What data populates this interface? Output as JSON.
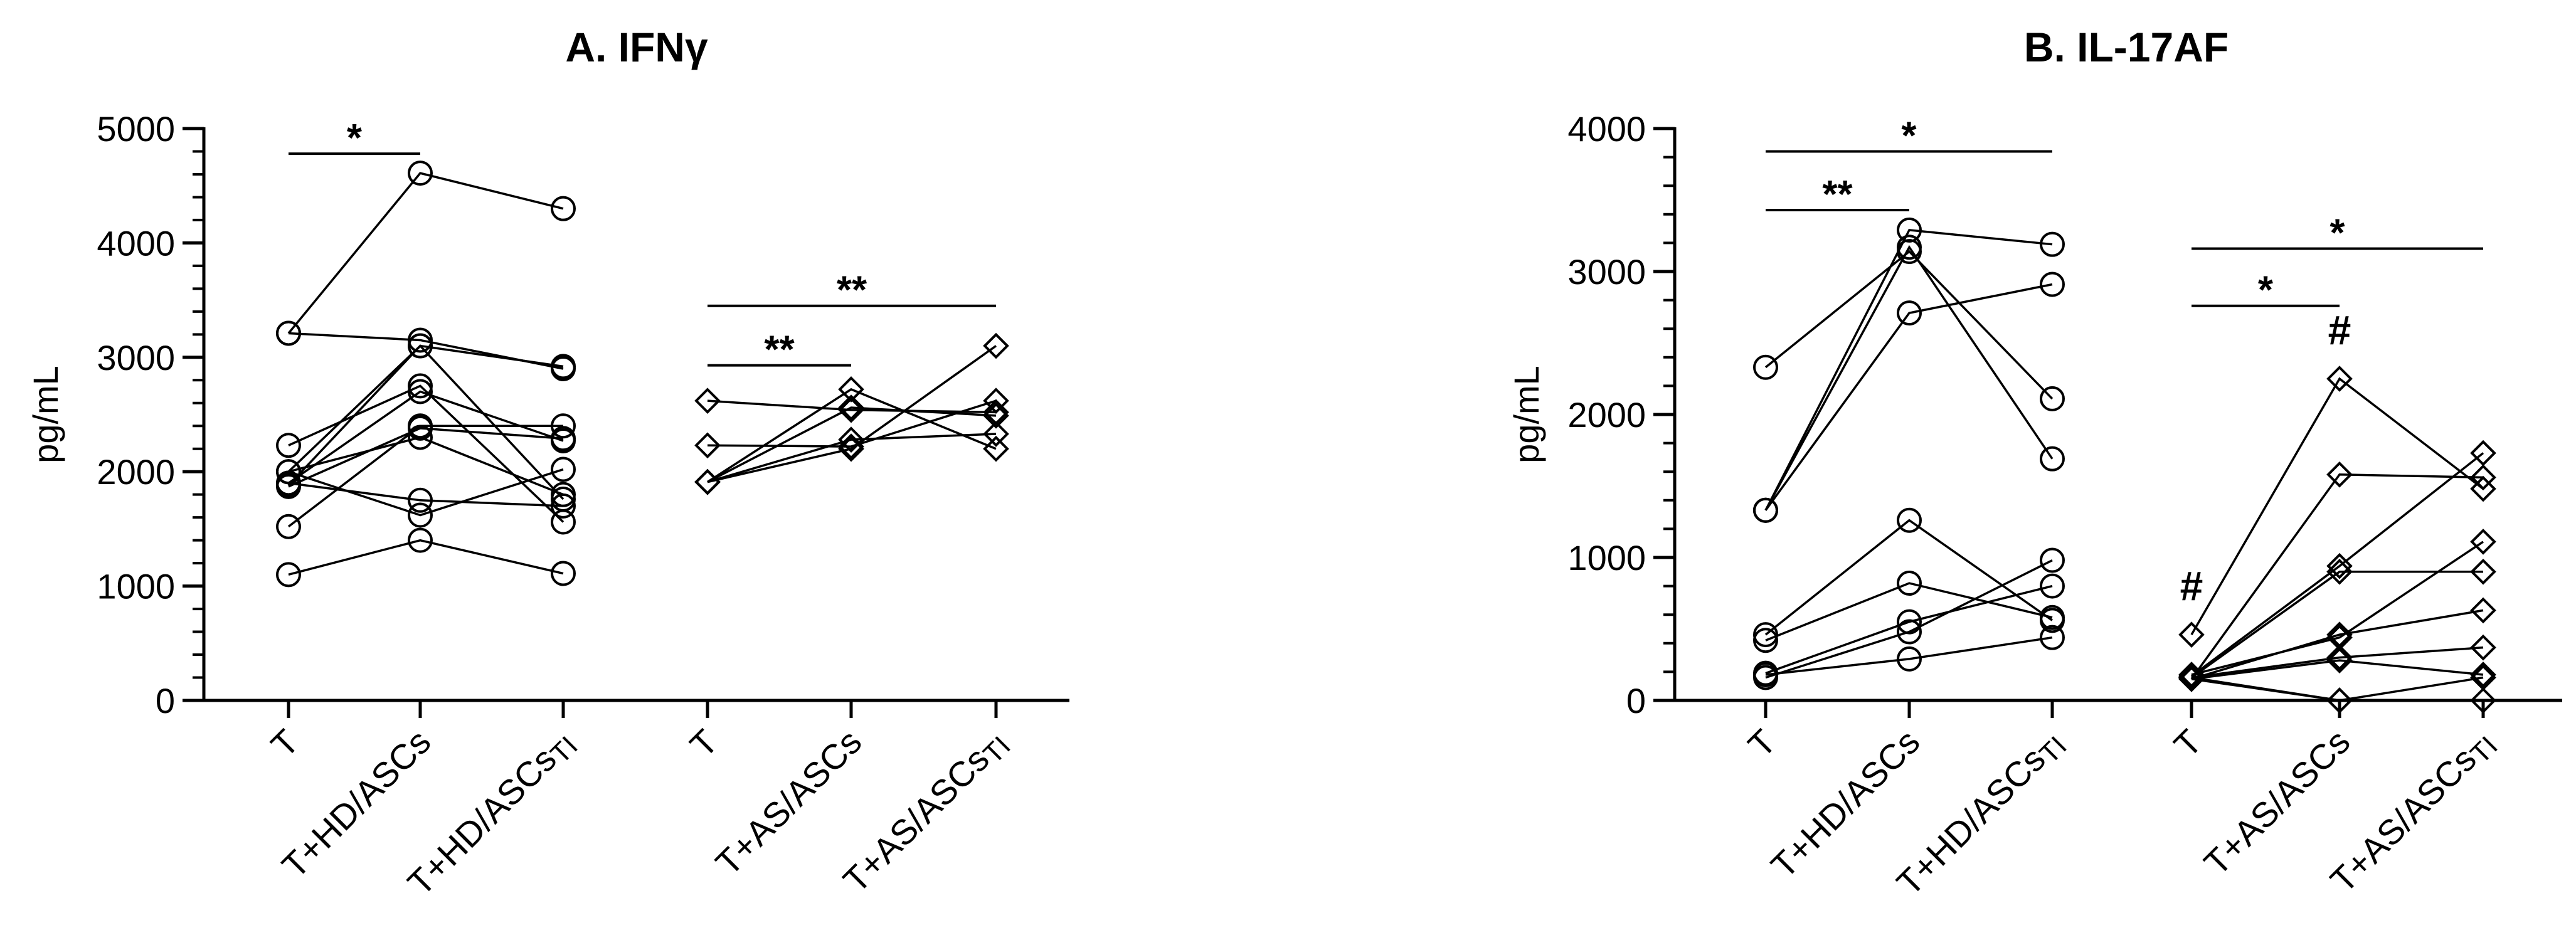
{
  "chart_data": [
    {
      "type": "line",
      "panel": "A",
      "title": "A. IFNγ",
      "ylabel": "pg/mL",
      "ylim": [
        0,
        5000
      ],
      "yticks": [
        0,
        1000,
        2000,
        3000,
        4000,
        5000
      ],
      "categories": [
        "T",
        "T+HD/ASCs",
        "T+HD/ASCsTI",
        "T",
        "T+AS/ASCs",
        "T+AS/ASCsTI"
      ],
      "category_labels": [
        {
          "main": "T",
          "sub": ""
        },
        {
          "main": "T+HD/ASCs",
          "sub": ""
        },
        {
          "main": "T+HD/ASCs",
          "sub": "TI"
        },
        {
          "main": "T",
          "sub": ""
        },
        {
          "main": "T+AS/ASCs",
          "sub": ""
        },
        {
          "main": "T+AS/ASCs",
          "sub": "TI"
        }
      ],
      "groups": [
        {
          "name": "HD",
          "marker": "circle",
          "categories": [
            0,
            1,
            2
          ],
          "subjects": [
            [
              3210,
              4610,
              4300
            ],
            [
              3210,
              3150,
              2900
            ],
            [
              1880,
              3100,
              2920
            ],
            [
              2000,
              3100,
              1760
            ],
            [
              2230,
              2750,
              1560
            ],
            [
              1900,
              2700,
              2270
            ],
            [
              1520,
              2400,
              2400
            ],
            [
              1870,
              2380,
              2290
            ],
            [
              2000,
              2300,
              1800
            ],
            [
              1900,
              1750,
              1700
            ],
            [
              2000,
              1620,
              2020
            ],
            [
              1100,
              1400,
              1110
            ]
          ]
        },
        {
          "name": "AS",
          "marker": "diamond",
          "categories": [
            3,
            4,
            5
          ],
          "subjects": [
            [
              2620,
              2540,
              2520
            ],
            [
              2230,
              2220,
              2620
            ],
            [
              1910,
              2720,
              2200
            ],
            [
              1910,
              2560,
              2490
            ],
            [
              1910,
              2200,
              3100
            ],
            [
              1910,
              2280,
              2330
            ]
          ]
        }
      ],
      "significance": [
        {
          "from": 0,
          "to": 1,
          "label": "*",
          "level": 4780
        },
        {
          "from": 3,
          "to": 4,
          "label": "**",
          "level": 2930
        },
        {
          "from": 3,
          "to": 5,
          "label": "**",
          "level": 3450
        }
      ],
      "annotations": []
    },
    {
      "type": "line",
      "panel": "B",
      "title": "B. IL-17AF",
      "ylabel": "pg/mL",
      "ylim": [
        0,
        4000
      ],
      "yticks": [
        0,
        1000,
        2000,
        3000,
        4000
      ],
      "categories": [
        "T",
        "T+HD/ASCs",
        "T+HD/ASCsTI",
        "T",
        "T+AS/ASCs",
        "T+AS/ASCsTI"
      ],
      "category_labels": [
        {
          "main": "T",
          "sub": ""
        },
        {
          "main": "T+HD/ASCs",
          "sub": ""
        },
        {
          "main": "T+HD/ASCs",
          "sub": "TI"
        },
        {
          "main": "T",
          "sub": ""
        },
        {
          "main": "T+AS/ASCs",
          "sub": ""
        },
        {
          "main": "T+AS/ASCs",
          "sub": "TI"
        }
      ],
      "groups": [
        {
          "name": "HD",
          "marker": "circle",
          "categories": [
            0,
            1,
            2
          ],
          "subjects": [
            [
              2330,
              3140,
              2110
            ],
            [
              1330,
              3290,
              3190
            ],
            [
              1330,
              3170,
              1690
            ],
            [
              1330,
              2710,
              2910
            ],
            [
              460,
              1260,
              560
            ],
            [
              420,
              820,
              580
            ],
            [
              190,
              550,
              800
            ],
            [
              160,
              480,
              980
            ],
            [
              180,
              290,
              440
            ]
          ]
        },
        {
          "name": "AS",
          "marker": "diamond",
          "categories": [
            3,
            4,
            5
          ],
          "subjects": [
            [
              460,
              2250,
              1480
            ],
            [
              150,
              1580,
              1560
            ],
            [
              170,
              940,
              1730
            ],
            [
              160,
              900,
              900
            ],
            [
              180,
              440,
              1110
            ],
            [
              150,
              460,
              630
            ],
            [
              160,
              300,
              370
            ],
            [
              150,
              280,
              180
            ],
            [
              160,
              0,
              160
            ],
            [
              150,
              0,
              0
            ]
          ]
        }
      ],
      "significance": [
        {
          "from": 0,
          "to": 1,
          "label": "**",
          "level": 3430
        },
        {
          "from": 0,
          "to": 2,
          "label": "*",
          "level": 3840
        },
        {
          "from": 3,
          "to": 4,
          "label": "*",
          "level": 2760
        },
        {
          "from": 3,
          "to": 5,
          "label": "*",
          "level": 3160
        }
      ],
      "annotations": [
        {
          "label": "#",
          "category": 3,
          "value": 700
        },
        {
          "label": "#",
          "category": 4,
          "value": 2490
        }
      ]
    }
  ]
}
